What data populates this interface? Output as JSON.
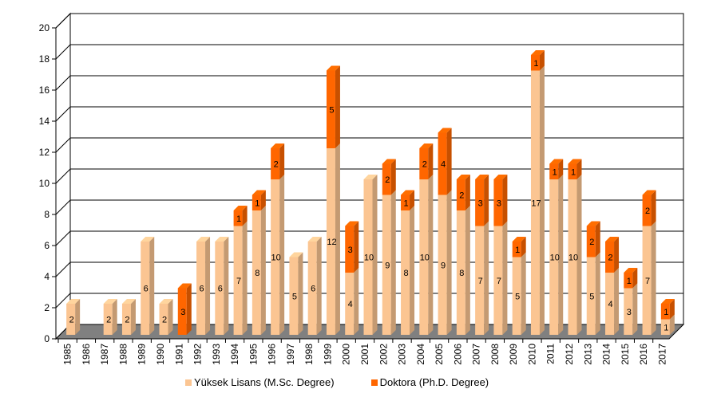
{
  "chart_data": {
    "type": "bar",
    "stacked": true,
    "three_d": true,
    "categories": [
      "1985",
      "1986",
      "1987",
      "1988",
      "1989",
      "1990",
      "1991",
      "1992",
      "1993",
      "1994",
      "1995",
      "1996",
      "1997",
      "1998",
      "1999",
      "2000",
      "2001",
      "2002",
      "2003",
      "2004",
      "2005",
      "2006",
      "2007",
      "2008",
      "2009",
      "2010",
      "2011",
      "2012",
      "2013",
      "2014",
      "2015",
      "2016",
      "2017"
    ],
    "series": [
      {
        "name": "Yüksek Lisans (M.Sc. Degree)",
        "color": "#fbc592",
        "values": [
          2,
          0,
          2,
          2,
          6,
          2,
          0,
          6,
          6,
          7,
          8,
          10,
          5,
          6,
          12,
          4,
          10,
          9,
          8,
          10,
          9,
          8,
          7,
          7,
          5,
          17,
          10,
          10,
          5,
          4,
          3,
          7,
          1
        ]
      },
      {
        "name": "Doktora (Ph.D. Degree)",
        "color": "#ff6600",
        "values": [
          0,
          0,
          0,
          0,
          0,
          0,
          3,
          0,
          0,
          1,
          1,
          2,
          0,
          0,
          5,
          3,
          0,
          2,
          1,
          2,
          4,
          2,
          3,
          3,
          1,
          1,
          1,
          1,
          2,
          2,
          1,
          2,
          1
        ]
      }
    ],
    "ylim": [
      0,
      20
    ],
    "yticks": [
      0,
      2,
      4,
      6,
      8,
      10,
      12,
      14,
      16,
      18,
      20
    ],
    "grid": true,
    "legend_position": "bottom"
  }
}
